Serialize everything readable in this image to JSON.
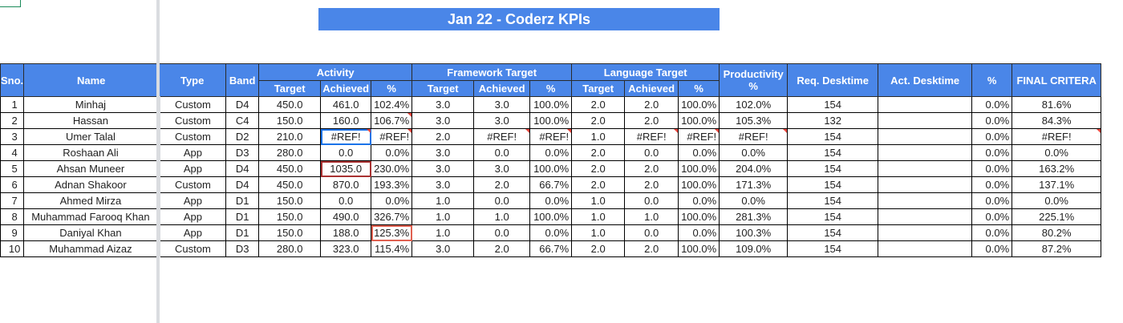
{
  "title": "Jan 22 - Coderz KPIs",
  "headers": {
    "sno": "Sno.",
    "name": "Name",
    "type": "Type",
    "band": "Band",
    "activity": "Activity",
    "framework": "Framework Target",
    "language": "Language Target",
    "productivity": "Productivity %",
    "req_desktime": "Req. Desktime",
    "act_desktime": "Act. Desktime",
    "pct": "%",
    "final": "FINAL CRITERA",
    "sub": {
      "target": "Target",
      "achieved": "Achieved",
      "pct": "%"
    }
  },
  "rows": [
    {
      "sno": "1",
      "name": "Minhaj",
      "type": "Custom",
      "band": "D4",
      "a_t": "450.0",
      "a_a": "461.0",
      "a_p": "102.4%",
      "f_t": "3.0",
      "f_a": "3.0",
      "f_p": "100.0%",
      "l_t": "2.0",
      "l_a": "2.0",
      "l_p": "100.0%",
      "prod": "102.0%",
      "req": "154",
      "act": "",
      "pct": "0.0%",
      "final": "81.6%"
    },
    {
      "sno": "2",
      "name": "Hassan",
      "type": "Custom",
      "band": "C4",
      "a_t": "150.0",
      "a_a": "160.0",
      "a_p": "106.7%",
      "f_t": "3.0",
      "f_a": "3.0",
      "f_p": "100.0%",
      "l_t": "2.0",
      "l_a": "2.0",
      "l_p": "100.0%",
      "prod": "105.3%",
      "req": "132",
      "act": "",
      "pct": "0.0%",
      "final": "84.3%"
    },
    {
      "sno": "3",
      "name": "Umer Talal",
      "type": "Custom",
      "band": "D2",
      "a_t": "210.0",
      "a_a": "#REF!",
      "a_p": "#REF!",
      "f_t": "2.0",
      "f_a": "#REF!",
      "f_p": "#REF!",
      "l_t": "1.0",
      "l_a": "#REF!",
      "l_p": "#REF!",
      "prod": "#REF!",
      "req": "154",
      "act": "",
      "pct": "0.0%",
      "final": "#REF!"
    },
    {
      "sno": "4",
      "name": "Roshaan Ali",
      "type": "App",
      "band": "D3",
      "a_t": "280.0",
      "a_a": "0.0",
      "a_p": "0.0%",
      "f_t": "3.0",
      "f_a": "0.0",
      "f_p": "0.0%",
      "l_t": "2.0",
      "l_a": "0.0",
      "l_p": "0.0%",
      "prod": "0.0%",
      "req": "154",
      "act": "",
      "pct": "0.0%",
      "final": "0.0%"
    },
    {
      "sno": "5",
      "name": "Ahsan Muneer",
      "type": "App",
      "band": "D4",
      "a_t": "450.0",
      "a_a": "1035.0",
      "a_p": "230.0%",
      "f_t": "3.0",
      "f_a": "3.0",
      "f_p": "100.0%",
      "l_t": "2.0",
      "l_a": "2.0",
      "l_p": "100.0%",
      "prod": "204.0%",
      "req": "154",
      "act": "",
      "pct": "0.0%",
      "final": "163.2%"
    },
    {
      "sno": "6",
      "name": "Adnan Shakoor",
      "type": "Custom",
      "band": "D4",
      "a_t": "450.0",
      "a_a": "870.0",
      "a_p": "193.3%",
      "f_t": "3.0",
      "f_a": "2.0",
      "f_p": "66.7%",
      "l_t": "2.0",
      "l_a": "2.0",
      "l_p": "100.0%",
      "prod": "171.3%",
      "req": "154",
      "act": "",
      "pct": "0.0%",
      "final": "137.1%"
    },
    {
      "sno": "7",
      "name": "Ahmed Mirza",
      "type": "App",
      "band": "D1",
      "a_t": "150.0",
      "a_a": "0.0",
      "a_p": "0.0%",
      "f_t": "1.0",
      "f_a": "0.0",
      "f_p": "0.0%",
      "l_t": "1.0",
      "l_a": "0.0",
      "l_p": "0.0%",
      "prod": "0.0%",
      "req": "154",
      "act": "",
      "pct": "0.0%",
      "final": "0.0%"
    },
    {
      "sno": "8",
      "name": "Muhammad Farooq Khan",
      "type": "App",
      "band": "D1",
      "a_t": "150.0",
      "a_a": "490.0",
      "a_p": "326.7%",
      "f_t": "1.0",
      "f_a": "1.0",
      "f_p": "100.0%",
      "l_t": "1.0",
      "l_a": "1.0",
      "l_p": "100.0%",
      "prod": "281.3%",
      "req": "154",
      "act": "",
      "pct": "0.0%",
      "final": "225.1%"
    },
    {
      "sno": "9",
      "name": "Daniyal Khan",
      "type": "App",
      "band": "D1",
      "a_t": "150.0",
      "a_a": "188.0",
      "a_p": "125.3%",
      "f_t": "1.0",
      "f_a": "0.0",
      "f_p": "0.0%",
      "l_t": "1.0",
      "l_a": "0.0",
      "l_p": "0.0%",
      "prod": "100.3%",
      "req": "154",
      "act": "",
      "pct": "0.0%",
      "final": "80.2%"
    },
    {
      "sno": "10",
      "name": "Muhammad Aizaz",
      "type": "Custom",
      "band": "D3",
      "a_t": "280.0",
      "a_a": "323.0",
      "a_p": "115.4%",
      "f_t": "3.0",
      "f_a": "2.0",
      "f_p": "66.7%",
      "l_t": "2.0",
      "l_a": "2.0",
      "l_p": "100.0%",
      "prod": "109.0%",
      "req": "154",
      "act": "",
      "pct": "0.0%",
      "final": "87.2%"
    }
  ]
}
